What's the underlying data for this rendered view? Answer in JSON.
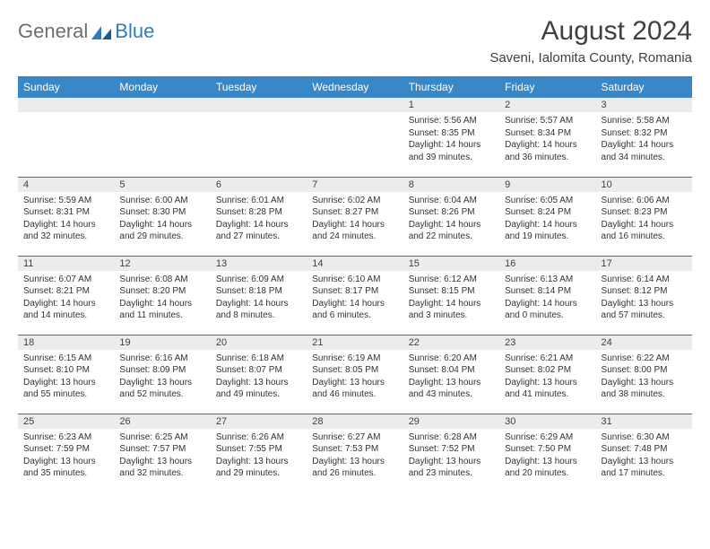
{
  "logo": {
    "general": "General",
    "blue": "Blue"
  },
  "header": {
    "month_title": "August 2024",
    "location": "Saveni, Ialomita County, Romania"
  },
  "colors": {
    "header_bg": "#3a87c7",
    "header_text": "#ffffff",
    "daynum_bg": "#ececec",
    "border": "#2f6ea8",
    "logo_gray": "#6d6d6d",
    "logo_blue": "#2f7bbf",
    "text": "#333333"
  },
  "day_headers": [
    "Sunday",
    "Monday",
    "Tuesday",
    "Wednesday",
    "Thursday",
    "Friday",
    "Saturday"
  ],
  "weeks": [
    [
      {
        "num": "",
        "sunrise": "",
        "sunset": "",
        "daylight": ""
      },
      {
        "num": "",
        "sunrise": "",
        "sunset": "",
        "daylight": ""
      },
      {
        "num": "",
        "sunrise": "",
        "sunset": "",
        "daylight": ""
      },
      {
        "num": "",
        "sunrise": "",
        "sunset": "",
        "daylight": ""
      },
      {
        "num": "1",
        "sunrise": "Sunrise: 5:56 AM",
        "sunset": "Sunset: 8:35 PM",
        "daylight": "Daylight: 14 hours and 39 minutes."
      },
      {
        "num": "2",
        "sunrise": "Sunrise: 5:57 AM",
        "sunset": "Sunset: 8:34 PM",
        "daylight": "Daylight: 14 hours and 36 minutes."
      },
      {
        "num": "3",
        "sunrise": "Sunrise: 5:58 AM",
        "sunset": "Sunset: 8:32 PM",
        "daylight": "Daylight: 14 hours and 34 minutes."
      }
    ],
    [
      {
        "num": "4",
        "sunrise": "Sunrise: 5:59 AM",
        "sunset": "Sunset: 8:31 PM",
        "daylight": "Daylight: 14 hours and 32 minutes."
      },
      {
        "num": "5",
        "sunrise": "Sunrise: 6:00 AM",
        "sunset": "Sunset: 8:30 PM",
        "daylight": "Daylight: 14 hours and 29 minutes."
      },
      {
        "num": "6",
        "sunrise": "Sunrise: 6:01 AM",
        "sunset": "Sunset: 8:28 PM",
        "daylight": "Daylight: 14 hours and 27 minutes."
      },
      {
        "num": "7",
        "sunrise": "Sunrise: 6:02 AM",
        "sunset": "Sunset: 8:27 PM",
        "daylight": "Daylight: 14 hours and 24 minutes."
      },
      {
        "num": "8",
        "sunrise": "Sunrise: 6:04 AM",
        "sunset": "Sunset: 8:26 PM",
        "daylight": "Daylight: 14 hours and 22 minutes."
      },
      {
        "num": "9",
        "sunrise": "Sunrise: 6:05 AM",
        "sunset": "Sunset: 8:24 PM",
        "daylight": "Daylight: 14 hours and 19 minutes."
      },
      {
        "num": "10",
        "sunrise": "Sunrise: 6:06 AM",
        "sunset": "Sunset: 8:23 PM",
        "daylight": "Daylight: 14 hours and 16 minutes."
      }
    ],
    [
      {
        "num": "11",
        "sunrise": "Sunrise: 6:07 AM",
        "sunset": "Sunset: 8:21 PM",
        "daylight": "Daylight: 14 hours and 14 minutes."
      },
      {
        "num": "12",
        "sunrise": "Sunrise: 6:08 AM",
        "sunset": "Sunset: 8:20 PM",
        "daylight": "Daylight: 14 hours and 11 minutes."
      },
      {
        "num": "13",
        "sunrise": "Sunrise: 6:09 AM",
        "sunset": "Sunset: 8:18 PM",
        "daylight": "Daylight: 14 hours and 8 minutes."
      },
      {
        "num": "14",
        "sunrise": "Sunrise: 6:10 AM",
        "sunset": "Sunset: 8:17 PM",
        "daylight": "Daylight: 14 hours and 6 minutes."
      },
      {
        "num": "15",
        "sunrise": "Sunrise: 6:12 AM",
        "sunset": "Sunset: 8:15 PM",
        "daylight": "Daylight: 14 hours and 3 minutes."
      },
      {
        "num": "16",
        "sunrise": "Sunrise: 6:13 AM",
        "sunset": "Sunset: 8:14 PM",
        "daylight": "Daylight: 14 hours and 0 minutes."
      },
      {
        "num": "17",
        "sunrise": "Sunrise: 6:14 AM",
        "sunset": "Sunset: 8:12 PM",
        "daylight": "Daylight: 13 hours and 57 minutes."
      }
    ],
    [
      {
        "num": "18",
        "sunrise": "Sunrise: 6:15 AM",
        "sunset": "Sunset: 8:10 PM",
        "daylight": "Daylight: 13 hours and 55 minutes."
      },
      {
        "num": "19",
        "sunrise": "Sunrise: 6:16 AM",
        "sunset": "Sunset: 8:09 PM",
        "daylight": "Daylight: 13 hours and 52 minutes."
      },
      {
        "num": "20",
        "sunrise": "Sunrise: 6:18 AM",
        "sunset": "Sunset: 8:07 PM",
        "daylight": "Daylight: 13 hours and 49 minutes."
      },
      {
        "num": "21",
        "sunrise": "Sunrise: 6:19 AM",
        "sunset": "Sunset: 8:05 PM",
        "daylight": "Daylight: 13 hours and 46 minutes."
      },
      {
        "num": "22",
        "sunrise": "Sunrise: 6:20 AM",
        "sunset": "Sunset: 8:04 PM",
        "daylight": "Daylight: 13 hours and 43 minutes."
      },
      {
        "num": "23",
        "sunrise": "Sunrise: 6:21 AM",
        "sunset": "Sunset: 8:02 PM",
        "daylight": "Daylight: 13 hours and 41 minutes."
      },
      {
        "num": "24",
        "sunrise": "Sunrise: 6:22 AM",
        "sunset": "Sunset: 8:00 PM",
        "daylight": "Daylight: 13 hours and 38 minutes."
      }
    ],
    [
      {
        "num": "25",
        "sunrise": "Sunrise: 6:23 AM",
        "sunset": "Sunset: 7:59 PM",
        "daylight": "Daylight: 13 hours and 35 minutes."
      },
      {
        "num": "26",
        "sunrise": "Sunrise: 6:25 AM",
        "sunset": "Sunset: 7:57 PM",
        "daylight": "Daylight: 13 hours and 32 minutes."
      },
      {
        "num": "27",
        "sunrise": "Sunrise: 6:26 AM",
        "sunset": "Sunset: 7:55 PM",
        "daylight": "Daylight: 13 hours and 29 minutes."
      },
      {
        "num": "28",
        "sunrise": "Sunrise: 6:27 AM",
        "sunset": "Sunset: 7:53 PM",
        "daylight": "Daylight: 13 hours and 26 minutes."
      },
      {
        "num": "29",
        "sunrise": "Sunrise: 6:28 AM",
        "sunset": "Sunset: 7:52 PM",
        "daylight": "Daylight: 13 hours and 23 minutes."
      },
      {
        "num": "30",
        "sunrise": "Sunrise: 6:29 AM",
        "sunset": "Sunset: 7:50 PM",
        "daylight": "Daylight: 13 hours and 20 minutes."
      },
      {
        "num": "31",
        "sunrise": "Sunrise: 6:30 AM",
        "sunset": "Sunset: 7:48 PM",
        "daylight": "Daylight: 13 hours and 17 minutes."
      }
    ]
  ]
}
